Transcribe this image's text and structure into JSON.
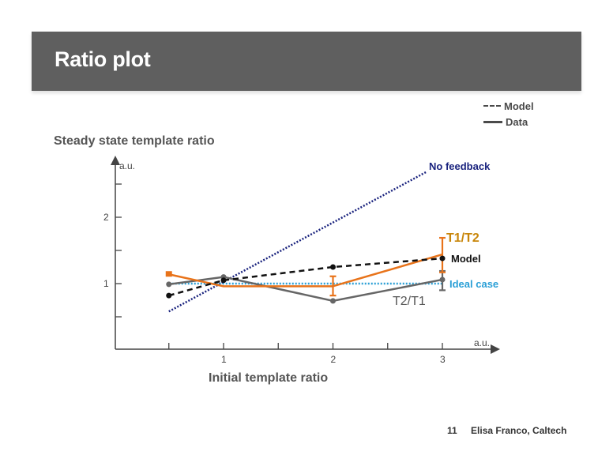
{
  "slide": {
    "title": "Ratio plot",
    "page_number": "11",
    "author": "Elisa Franco, Caltech"
  },
  "legend": {
    "model_label": "Model",
    "data_label": "Data"
  },
  "colors": {
    "banner": "#5f5f5f",
    "t1t2": "#e8731a",
    "t1t2_label": "#c8860a",
    "t2t1": "#666666",
    "model": "#111111",
    "ideal": "#2a9fd6",
    "no_feedback": "#1a237e"
  },
  "annotations": {
    "no_feedback": "No feedback",
    "t1t2": "T1/T2",
    "model": "Model",
    "ideal": "Ideal case",
    "t2t1": "T2/T1"
  },
  "chart_data": {
    "type": "line",
    "title": "",
    "ylabel": "Steady state template ratio",
    "xlabel": "Initial template ratio",
    "y_unit": "a.u.",
    "x_unit": "a.u.",
    "xlim": [
      0,
      3.3
    ],
    "ylim": [
      0,
      2.8
    ],
    "x_ticks": [
      0.5,
      1,
      1.5,
      2,
      2.5,
      3
    ],
    "x_tick_labels": [
      "",
      "1",
      "",
      "2",
      "",
      "3"
    ],
    "y_ticks": [
      0.5,
      1,
      1.5,
      2,
      2.5
    ],
    "y_tick_labels": [
      "",
      "1",
      "",
      "2",
      ""
    ],
    "grid": false,
    "legend_position": "top-right",
    "series": [
      {
        "name": "T1/T2",
        "style": "solid",
        "kind": "data",
        "x": [
          0.5,
          1,
          2,
          3
        ],
        "values": [
          1.14,
          0.96,
          0.96,
          1.44
        ],
        "error_low": [
          null,
          null,
          0.82,
          1.17
        ],
        "error_high": [
          null,
          null,
          1.11,
          1.69
        ]
      },
      {
        "name": "T2/T1",
        "style": "solid",
        "kind": "data",
        "x": [
          0.5,
          1,
          2,
          3
        ],
        "values": [
          0.99,
          1.1,
          0.74,
          1.06
        ],
        "error_low": [
          null,
          null,
          null,
          0.9
        ],
        "error_high": [
          null,
          null,
          null,
          1.19
        ]
      },
      {
        "name": "Model",
        "style": "dashed",
        "kind": "model",
        "x": [
          0.5,
          1,
          2,
          3
        ],
        "values": [
          0.82,
          1.05,
          1.25,
          1.38
        ]
      },
      {
        "name": "Ideal case",
        "style": "dotted",
        "kind": "reference",
        "x": [
          0.5,
          3
        ],
        "values": [
          1.0,
          1.0
        ]
      },
      {
        "name": "No feedback",
        "style": "dotted",
        "kind": "reference",
        "x": [
          0.5,
          2.85
        ],
        "values": [
          0.58,
          2.68
        ]
      }
    ]
  }
}
